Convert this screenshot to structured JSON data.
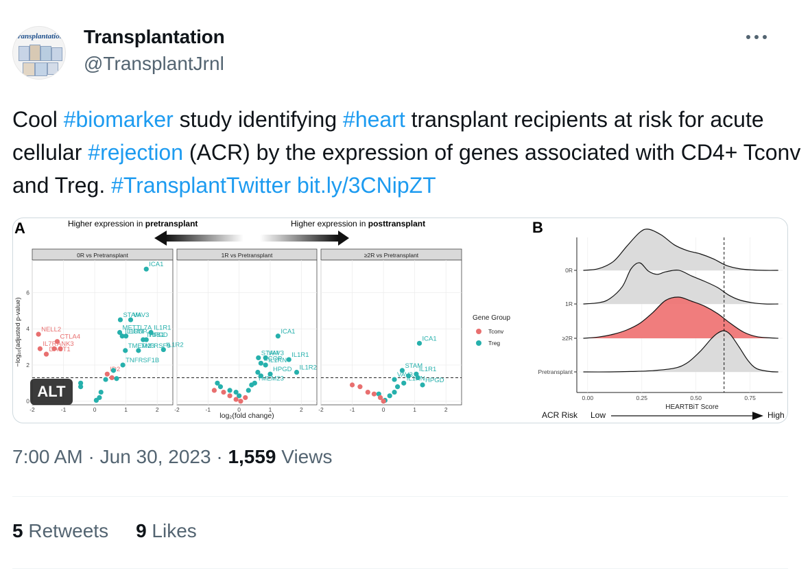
{
  "author": {
    "avatar_text": "transplantation",
    "display_name": "Transplantation",
    "handle": "@TransplantJrnl"
  },
  "tweet": {
    "t1": "Cool ",
    "h1": "#biomarker",
    "t2": " study identifying ",
    "h2": "#heart",
    "t3": " transplant recipients at risk for acute cellular ",
    "h3": "#rejection",
    "t4": " (ACR) by the expression of genes associated with CD4+ Tconv and Treg. ",
    "h4": "#TransplantTwitter",
    "t5": " ",
    "link": "bit.ly/3CNipZT"
  },
  "media": {
    "alt_badge": "ALT",
    "panel_a_label": "A",
    "panel_b_label": "B",
    "arrow_left_prefix": "Higher expression in ",
    "arrow_left_bold": "pretransplant",
    "arrow_right_prefix": "Higher expression in ",
    "arrow_right_bold": "posttransplant",
    "facets": [
      "0R vs Pretransplant",
      "1R vs Pretransplant",
      "≥2R vs Pretransplant"
    ],
    "volcano_ylabel": "−log₁₀(adjusted p-value)",
    "volcano_xlabel": "log₂(fold change)",
    "volcano_xticks": [
      "-2",
      "-1",
      "0",
      "1",
      "2"
    ],
    "volcano_yticks": [
      "0",
      "2",
      "4",
      "6"
    ],
    "legend_title": "Gene Group",
    "legend_items": [
      {
        "name": "Tconv",
        "color": "#e86f6f"
      },
      {
        "name": "Treg",
        "color": "#26b0ac"
      }
    ],
    "ridge_xlabel": "HEARTBiT Score",
    "ridge_xticks": [
      "0.00",
      "0.25",
      "0.50",
      "0.75"
    ],
    "ridge_groups": [
      "0R",
      "1R",
      "≥2R",
      "Pretransplant"
    ],
    "risk_label": "ACR Risk",
    "risk_low": "Low",
    "risk_high": "High"
  },
  "chart_data": [
    {
      "type": "scatter",
      "title": "0R vs Pretransplant",
      "xlabel": "log2(fold change)",
      "ylabel": "-log10(adjusted p-value)",
      "xlim": [
        -2,
        2.5
      ],
      "ylim": [
        -0.2,
        7.8
      ],
      "threshold_y": 1.3,
      "colors": {
        "Tconv": "#e86f6f",
        "Treg": "#26b0ac"
      },
      "points": [
        {
          "x": 1.65,
          "y": 7.3,
          "group": "Treg",
          "label": "ICA1"
        },
        {
          "x": 0.82,
          "y": 4.5,
          "group": "Treg",
          "label": "STAM"
        },
        {
          "x": 1.15,
          "y": 4.5,
          "group": "Treg",
          "label": "VAV3"
        },
        {
          "x": 0.8,
          "y": 3.8,
          "group": "Treg",
          "label": "METTL7A"
        },
        {
          "x": 1.8,
          "y": 3.8,
          "group": "Treg",
          "label": "IL1R1"
        },
        {
          "x": 0.88,
          "y": 3.6,
          "group": "Treg",
          "label": "IL1RN"
        },
        {
          "x": 1.0,
          "y": 3.6,
          "group": "Treg",
          "label": "ECOP"
        },
        {
          "x": 1.55,
          "y": 3.4,
          "group": "Treg",
          "label": "TRIB1"
        },
        {
          "x": 1.65,
          "y": 3.4,
          "group": "Treg",
          "label": "HPGD"
        },
        {
          "x": 0.98,
          "y": 2.8,
          "group": "Treg",
          "label": "TMEM23"
        },
        {
          "x": 1.4,
          "y": 2.8,
          "group": "Treg",
          "label": "TNFRSF9"
        },
        {
          "x": 2.2,
          "y": 2.85,
          "group": "Treg",
          "label": "IL1R2"
        },
        {
          "x": 0.9,
          "y": 2.0,
          "group": "Treg",
          "label": "TNFRSF1B"
        },
        {
          "x": -1.8,
          "y": 3.7,
          "group": "Tconv",
          "label": "NELL2"
        },
        {
          "x": -1.2,
          "y": 3.3,
          "group": "Tconv",
          "label": "CTLA4"
        },
        {
          "x": -1.75,
          "y": 2.9,
          "group": "Tconv",
          "label": "IL7R"
        },
        {
          "x": -1.3,
          "y": 2.9,
          "group": "Tconv",
          "label": "ANK3"
        },
        {
          "x": -1.1,
          "y": 2.9,
          "group": "Tconv"
        },
        {
          "x": -1.55,
          "y": 2.6,
          "group": "Tconv",
          "label": "DACT1"
        },
        {
          "x": 0.4,
          "y": 1.5,
          "group": "Tconv",
          "label": "ID2"
        },
        {
          "x": 0.55,
          "y": 1.3,
          "group": "Tconv"
        },
        {
          "x": 0.6,
          "y": 1.7,
          "group": "Treg"
        },
        {
          "x": 0.35,
          "y": 1.2,
          "group": "Treg"
        },
        {
          "x": 0.7,
          "y": 1.25,
          "group": "Treg"
        },
        {
          "x": -0.45,
          "y": 1.0,
          "group": "Treg"
        },
        {
          "x": -0.45,
          "y": 0.8,
          "group": "Treg"
        },
        {
          "x": 0.2,
          "y": 0.5,
          "group": "Treg"
        },
        {
          "x": 0.15,
          "y": 0.2,
          "group": "Treg"
        },
        {
          "x": 0.05,
          "y": 0.05,
          "group": "Treg"
        }
      ]
    },
    {
      "type": "scatter",
      "title": "1R vs Pretransplant",
      "xlabel": "log2(fold change)",
      "ylabel": "-log10(adjusted p-value)",
      "xlim": [
        -2,
        2.5
      ],
      "ylim": [
        -0.2,
        7.8
      ],
      "threshold_y": 1.3,
      "colors": {
        "Tconv": "#e86f6f",
        "Treg": "#26b0ac"
      },
      "points": [
        {
          "x": 1.25,
          "y": 3.6,
          "group": "Treg",
          "label": "ICA1"
        },
        {
          "x": 0.62,
          "y": 2.4,
          "group": "Treg",
          "label": "STAM"
        },
        {
          "x": 0.85,
          "y": 2.4,
          "group": "Treg",
          "label": "VAV3"
        },
        {
          "x": 1.6,
          "y": 2.3,
          "group": "Treg",
          "label": "IL1R1"
        },
        {
          "x": 0.7,
          "y": 2.1,
          "group": "Treg",
          "label": "ECOP"
        },
        {
          "x": 0.85,
          "y": 2.0,
          "group": "Treg",
          "label": "IL1RN"
        },
        {
          "x": 1.0,
          "y": 1.5,
          "group": "Treg",
          "label": "HPGD"
        },
        {
          "x": 1.85,
          "y": 1.6,
          "group": "Treg",
          "label": "IL1R2"
        },
        {
          "x": 0.5,
          "y": 1.0,
          "group": "Treg",
          "label": "TMEM23"
        },
        {
          "x": 0.6,
          "y": 1.6,
          "group": "Treg"
        },
        {
          "x": 0.7,
          "y": 1.4,
          "group": "Treg"
        },
        {
          "x": 0.4,
          "y": 0.9,
          "group": "Treg"
        },
        {
          "x": 0.3,
          "y": 0.6,
          "group": "Treg"
        },
        {
          "x": -0.1,
          "y": 0.5,
          "group": "Treg"
        },
        {
          "x": -0.3,
          "y": 0.6,
          "group": "Treg"
        },
        {
          "x": -0.6,
          "y": 0.8,
          "group": "Treg"
        },
        {
          "x": -0.7,
          "y": 1.0,
          "group": "Treg"
        },
        {
          "x": 0.0,
          "y": 0.3,
          "group": "Treg"
        },
        {
          "x": -0.8,
          "y": 0.6,
          "group": "Tconv"
        },
        {
          "x": -0.5,
          "y": 0.5,
          "group": "Tconv"
        },
        {
          "x": -0.3,
          "y": 0.3,
          "group": "Tconv"
        },
        {
          "x": -0.1,
          "y": 0.1,
          "group": "Tconv"
        },
        {
          "x": 0.05,
          "y": 0.0,
          "group": "Tconv"
        },
        {
          "x": 0.2,
          "y": 0.2,
          "group": "Tconv"
        }
      ]
    },
    {
      "type": "scatter",
      "title": "≥2R vs Pretransplant",
      "xlabel": "log2(fold change)",
      "ylabel": "-log10(adjusted p-value)",
      "xlim": [
        -2,
        2.5
      ],
      "ylim": [
        -0.2,
        7.8
      ],
      "threshold_y": 1.3,
      "colors": {
        "Tconv": "#e86f6f",
        "Treg": "#26b0ac"
      },
      "points": [
        {
          "x": 1.15,
          "y": 3.2,
          "group": "Treg",
          "label": "ICA1"
        },
        {
          "x": 0.6,
          "y": 1.7,
          "group": "Treg",
          "label": "STAM"
        },
        {
          "x": 1.05,
          "y": 1.5,
          "group": "Treg",
          "label": "IL1R1"
        },
        {
          "x": 0.35,
          "y": 1.2,
          "group": "Treg",
          "label": "VAV3"
        },
        {
          "x": 0.65,
          "y": 1.0,
          "group": "Treg",
          "label": "IL1RN"
        },
        {
          "x": 1.25,
          "y": 0.9,
          "group": "Treg",
          "label": "HPGD"
        },
        {
          "x": 0.45,
          "y": 0.8,
          "group": "Treg"
        },
        {
          "x": 0.35,
          "y": 0.5,
          "group": "Treg"
        },
        {
          "x": 0.2,
          "y": 0.3,
          "group": "Treg"
        },
        {
          "x": 0.05,
          "y": 0.05,
          "group": "Treg"
        },
        {
          "x": -0.15,
          "y": 0.4,
          "group": "Treg"
        },
        {
          "x": 0.8,
          "y": 1.4,
          "group": "Treg"
        },
        {
          "x": 1.1,
          "y": 1.3,
          "group": "Treg"
        },
        {
          "x": -1.0,
          "y": 0.9,
          "group": "Tconv"
        },
        {
          "x": -0.75,
          "y": 0.8,
          "group": "Tconv"
        },
        {
          "x": -0.5,
          "y": 0.5,
          "group": "Tconv"
        },
        {
          "x": -0.3,
          "y": 0.4,
          "group": "Tconv"
        },
        {
          "x": -0.1,
          "y": 0.2,
          "group": "Tconv"
        },
        {
          "x": 0.0,
          "y": 0.0,
          "group": "Tconv"
        }
      ]
    },
    {
      "type": "area",
      "title": "",
      "xlabel": "HEARTBiT Score",
      "xlim": [
        -0.05,
        0.9
      ],
      "threshold_x": 0.63,
      "series": [
        {
          "name": "0R",
          "fill": "#d9d9d9",
          "x": [
            -0.02,
            0.05,
            0.12,
            0.18,
            0.24,
            0.28,
            0.34,
            0.4,
            0.46,
            0.52,
            0.58,
            0.64,
            0.7,
            0.76,
            0.82,
            0.88
          ],
          "density": [
            0.0,
            0.04,
            0.22,
            0.58,
            0.92,
            1.0,
            0.86,
            0.62,
            0.48,
            0.4,
            0.28,
            0.12,
            0.04,
            0.01,
            0.0,
            0.0
          ]
        },
        {
          "name": "1R",
          "fill": "#d9d9d9",
          "x": [
            -0.02,
            0.05,
            0.1,
            0.16,
            0.2,
            0.24,
            0.28,
            0.32,
            0.36,
            0.42,
            0.48,
            0.54,
            0.6,
            0.65,
            0.7,
            0.76,
            0.82,
            0.88
          ],
          "density": [
            0.0,
            0.03,
            0.12,
            0.42,
            0.85,
            1.0,
            0.8,
            0.72,
            0.78,
            0.82,
            0.68,
            0.55,
            0.4,
            0.22,
            0.1,
            0.03,
            0.0,
            0.0
          ]
        },
        {
          "name": "≥2R",
          "fill": "#ef7676",
          "x": [
            -0.02,
            0.05,
            0.12,
            0.18,
            0.24,
            0.3,
            0.36,
            0.42,
            0.48,
            0.54,
            0.6,
            0.66,
            0.72,
            0.78,
            0.84,
            0.88
          ],
          "density": [
            0.0,
            0.03,
            0.1,
            0.2,
            0.36,
            0.62,
            0.92,
            1.0,
            0.9,
            0.78,
            0.6,
            0.36,
            0.15,
            0.04,
            0.01,
            0.0
          ]
        },
        {
          "name": "Pretransplant",
          "fill": "#d9d9d9",
          "x": [
            -0.02,
            0.1,
            0.2,
            0.3,
            0.4,
            0.46,
            0.52,
            0.57,
            0.6,
            0.63,
            0.66,
            0.7,
            0.74,
            0.78,
            0.84,
            0.88
          ],
          "density": [
            0.0,
            0.0,
            0.01,
            0.03,
            0.09,
            0.22,
            0.5,
            0.8,
            0.94,
            1.0,
            0.9,
            0.6,
            0.28,
            0.08,
            0.01,
            0.0
          ]
        }
      ]
    }
  ],
  "footer": {
    "time": "7:00 AM",
    "sep": " · ",
    "date": "Jun 30, 2023",
    "views_count": "1,559",
    "views_label": " Views"
  },
  "stats": {
    "retweets_count": "5",
    "retweets_label": " Retweets",
    "likes_count": "9",
    "likes_label": " Likes"
  }
}
